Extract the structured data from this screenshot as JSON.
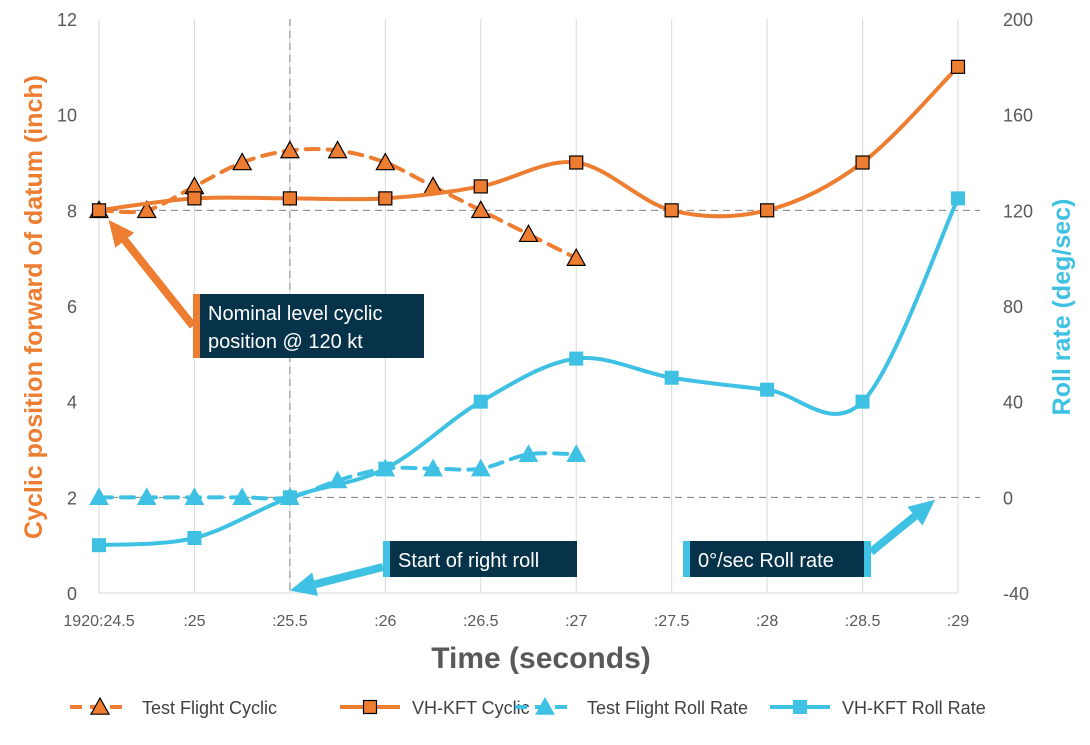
{
  "chart_data": {
    "type": "line",
    "title": "",
    "xlabel": "Time (seconds)",
    "ylabel_left": "Cyclic position forward of datum (inch)",
    "ylabel_right": "Roll rate (deg/sec)",
    "xlim": [
      24.5,
      29
    ],
    "ylim_left": [
      0,
      12
    ],
    "ylim_right": [
      -40,
      200
    ],
    "x_ticks": [
      {
        "x": 24.5,
        "label": "1920:24.5"
      },
      {
        "x": 25,
        "label": ":25"
      },
      {
        "x": 25.5,
        "label": ":25.5"
      },
      {
        "x": 26,
        "label": ":26"
      },
      {
        "x": 26.5,
        "label": ":26.5"
      },
      {
        "x": 27,
        "label": ":27"
      },
      {
        "x": 27.5,
        "label": ":27.5"
      },
      {
        "x": 28,
        "label": ":28"
      },
      {
        "x": 28.5,
        "label": ":28.5"
      },
      {
        "x": 29,
        "label": ":29"
      }
    ],
    "y_ticks_left": [
      {
        "v": 0,
        "label": "0"
      },
      {
        "v": 2,
        "label": "2"
      },
      {
        "v": 4,
        "label": "4"
      },
      {
        "v": 6,
        "label": "6"
      },
      {
        "v": 8,
        "label": "8"
      },
      {
        "v": 10,
        "label": "10"
      },
      {
        "v": 12,
        "label": "12"
      }
    ],
    "y_ticks_right": [
      {
        "v": -40,
        "label": "-40"
      },
      {
        "v": 0,
        "label": "0"
      },
      {
        "v": 40,
        "label": "40"
      },
      {
        "v": 80,
        "label": "80"
      },
      {
        "v": 120,
        "label": "120"
      },
      {
        "v": 160,
        "label": "160"
      },
      {
        "v": 200,
        "label": "200"
      }
    ],
    "series": [
      {
        "name": "Test Flight Cyclic",
        "axis": "left",
        "color": "#ED7D31",
        "dash": true,
        "marker": "triangle",
        "x": [
          24.5,
          24.75,
          25,
          25.25,
          25.5,
          25.75,
          26,
          26.25,
          26.5,
          26.75,
          27
        ],
        "y": [
          8.0,
          8.0,
          8.5,
          9.0,
          9.25,
          9.25,
          9.0,
          8.5,
          8.0,
          7.5,
          7.0
        ]
      },
      {
        "name": "VH-KFT Cyclic",
        "axis": "left",
        "color": "#ED7D31",
        "dash": false,
        "marker": "square",
        "x": [
          24.5,
          25,
          25.5,
          26,
          26.5,
          27,
          27.5,
          28,
          28.5,
          29
        ],
        "y": [
          8.0,
          8.25,
          8.25,
          8.25,
          8.5,
          9.0,
          8.0,
          8.0,
          9.0,
          11.0
        ]
      },
      {
        "name": "Test Flight Roll Rate",
        "axis": "right",
        "color": "#3EC1E3",
        "dash": true,
        "marker": "triangle",
        "x": [
          24.5,
          24.75,
          25,
          25.25,
          25.5,
          25.75,
          26,
          26.25,
          26.5,
          26.75,
          27
        ],
        "y": [
          0,
          0,
          0,
          0,
          0,
          7,
          12,
          12,
          12,
          18,
          18
        ]
      },
      {
        "name": "VH-KFT Roll Rate",
        "axis": "right",
        "color": "#3EC1E3",
        "dash": false,
        "marker": "square",
        "x": [
          24.5,
          25,
          25.5,
          26,
          26.5,
          27,
          27.5,
          28,
          28.5,
          29
        ],
        "y": [
          -20,
          -17,
          0,
          12,
          40,
          58,
          50,
          45,
          40,
          125
        ]
      }
    ],
    "reference_lines": [
      {
        "orientation": "horizontal",
        "axis": "left",
        "value": 8
      },
      {
        "orientation": "horizontal",
        "axis": "right",
        "value": 0
      },
      {
        "orientation": "vertical",
        "value": 25.5
      }
    ],
    "annotations": [
      {
        "text_lines": [
          "Nominal level cyclic",
          "position @ 120 kt"
        ],
        "accent": "#ED7D31",
        "arrow_to": {
          "x": 24.55,
          "y_left": 7.8
        }
      },
      {
        "text_lines": [
          "Start of right roll"
        ],
        "accent": "#3EC1E3",
        "arrow_to": {
          "x": 25.5,
          "y_left": 0.05
        }
      },
      {
        "text_lines": [
          "0°/sec Roll rate"
        ],
        "accent": "#3EC1E3",
        "arrow_to": {
          "x": 28.88,
          "y_left": 1.95
        }
      }
    ],
    "colors": {
      "left_axis_title": "#ED7D31",
      "right_axis": "#3EC1E3",
      "callout_bg": "#06334A"
    },
    "grid": "vertical",
    "legend_position": "bottom"
  }
}
